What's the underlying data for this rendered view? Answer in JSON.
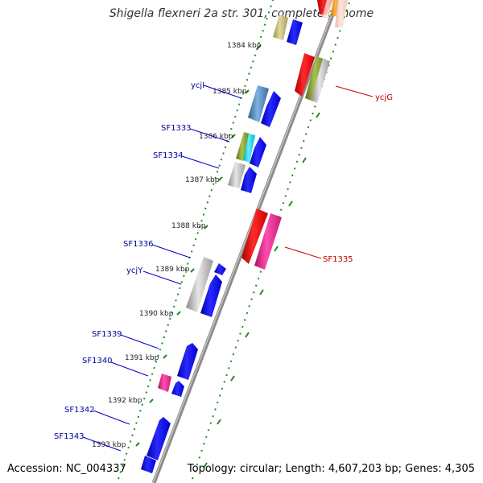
{
  "title": "Shigella flexneri 2a str. 301, complete genome",
  "accession": "Accession: NC_004337",
  "topology": "Topology: circular; Length: 4,607,203 bp; Genes: 4,305",
  "kbp_ticks": [
    "1384 kbp",
    "1385 kbp",
    "1386 kbp",
    "1387 kbp",
    "1388 kbp",
    "1389 kbp",
    "1390 kbp",
    "1391 kbp",
    "1392 kbp",
    "1393 kbp"
  ],
  "genes_left": [
    "ycjI",
    "SF1333",
    "SF1334",
    "SF1336",
    "ycjY",
    "SF1339",
    "SF1340",
    "SF1342",
    "SF1343"
  ],
  "genes_right": [
    "ycjG",
    "SF1335"
  ],
  "colors": {
    "backbone": "#8c8c8c",
    "forward_gene": "#0000ee",
    "reverse_gene": "#ee0000",
    "pink_gene": "#e0208a",
    "tick": "#1f8a1f",
    "left_label": "#00009c",
    "right_label": "#c00000"
  }
}
